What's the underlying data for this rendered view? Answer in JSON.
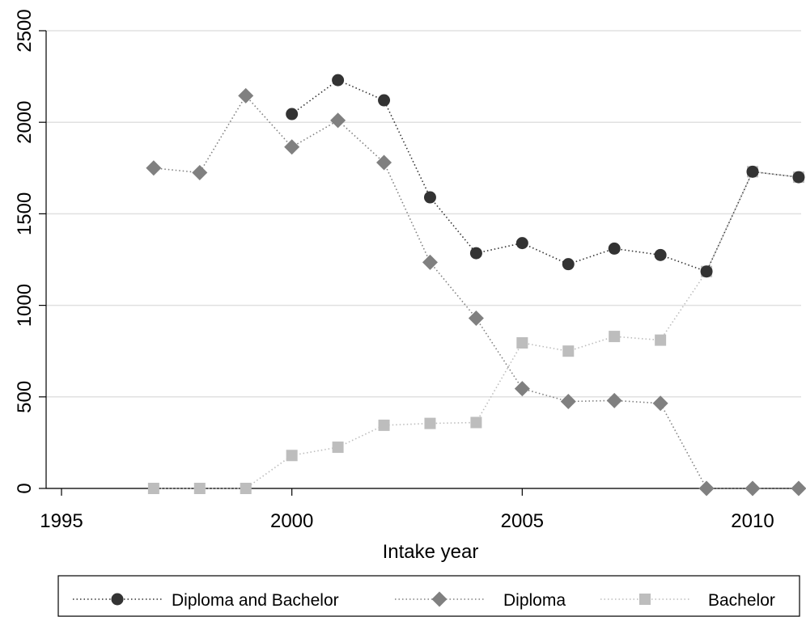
{
  "chart_data": {
    "type": "line",
    "title": "",
    "xlabel": "Intake year",
    "ylabel": "",
    "xlim": [
      1995,
      2011
    ],
    "ylim": [
      0,
      2500
    ],
    "x_ticks": [
      "1995",
      "2000",
      "2005",
      "2010"
    ],
    "y_ticks": [
      "0",
      "500",
      "1000",
      "1500",
      "2000",
      "2500"
    ],
    "grid": true,
    "legend_position": "bottom",
    "series": [
      {
        "name": "Diploma and Bachelor",
        "marker": "circle",
        "color": "#333333",
        "x": [
          2000,
          2001,
          2002,
          2003,
          2004,
          2005,
          2006,
          2007,
          2008,
          2009,
          2010,
          2011
        ],
        "y": [
          2045,
          2230,
          2120,
          1590,
          1285,
          1340,
          1225,
          1310,
          1275,
          1185,
          1730,
          1700
        ]
      },
      {
        "name": "Diploma",
        "marker": "diamond",
        "color": "#808080",
        "x": [
          1997,
          1998,
          1999,
          2000,
          2001,
          2002,
          2003,
          2004,
          2005,
          2006,
          2007,
          2008,
          2009,
          2010,
          2011
        ],
        "y": [
          1750,
          1725,
          2145,
          1865,
          2010,
          1780,
          1235,
          930,
          545,
          475,
          480,
          465,
          0,
          0,
          0
        ]
      },
      {
        "name": "Bachelor",
        "marker": "square",
        "color": "#bdbdbd",
        "x": [
          1997,
          1998,
          1999,
          2000,
          2001,
          2002,
          2003,
          2004,
          2005,
          2006,
          2007,
          2008,
          2009,
          2010,
          2011
        ],
        "y": [
          0,
          0,
          0,
          180,
          225,
          345,
          355,
          360,
          795,
          750,
          830,
          810,
          1185,
          1730,
          1700
        ]
      }
    ]
  }
}
